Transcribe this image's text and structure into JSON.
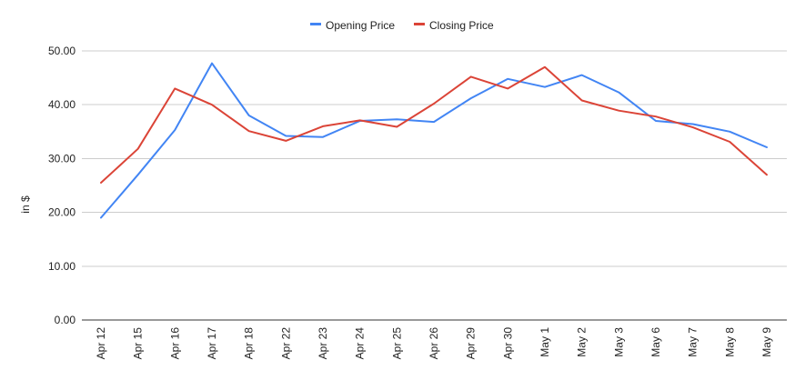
{
  "chart_data": {
    "type": "line",
    "title": "",
    "xlabel": "",
    "ylabel": "in $",
    "ylim": [
      0,
      50
    ],
    "y_ticks": [
      "0.00",
      "10.00",
      "20.00",
      "30.00",
      "40.00",
      "50.00"
    ],
    "y_tick_values": [
      0,
      10,
      20,
      30,
      40,
      50
    ],
    "grid": true,
    "legend_position": "top-center",
    "categories": [
      "Apr 12",
      "Apr 15",
      "Apr 16",
      "Apr 17",
      "Apr 18",
      "Apr 22",
      "Apr 23",
      "Apr 24",
      "Apr 25",
      "Apr 26",
      "Apr 29",
      "Apr 30",
      "May 1",
      "May 2",
      "May 3",
      "May 6",
      "May 7",
      "May 8",
      "May 9"
    ],
    "series": [
      {
        "name": "Opening Price",
        "color": "#4285f4",
        "values": [
          19.0,
          27.0,
          35.3,
          47.7,
          38.0,
          34.2,
          34.0,
          37.0,
          37.3,
          36.8,
          41.2,
          44.8,
          43.3,
          45.5,
          42.3,
          37.0,
          36.4,
          35.0,
          32.1
        ]
      },
      {
        "name": "Closing Price",
        "color": "#db4437",
        "values": [
          25.5,
          31.8,
          43.0,
          40.0,
          35.1,
          33.3,
          36.0,
          37.1,
          35.9,
          40.2,
          45.2,
          43.0,
          47.0,
          40.8,
          38.9,
          37.8,
          35.8,
          33.1,
          27.0
        ]
      }
    ]
  }
}
